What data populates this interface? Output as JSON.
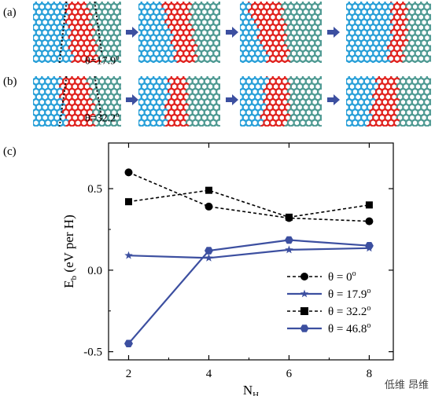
{
  "panels": {
    "a": {
      "label": "(a)",
      "theta": "θ=17.9",
      "theta_sup": "o"
    },
    "b": {
      "label": "(b)",
      "theta": "θ=32.2",
      "theta_sup": "o"
    },
    "c": {
      "label": "(c)"
    }
  },
  "colors": {
    "atom_blue": "#2aa0d8",
    "atom_red": "#e0231f",
    "atom_teal": "#4f9a93",
    "arrow": "#3c4fa0",
    "series_blue": "#3c4fa0"
  },
  "watermark": "低维 昂维",
  "chart_data": {
    "type": "line",
    "xlabel": "N",
    "xlabel_sub": "H",
    "ylabel": "E",
    "ylabel_sub": "b",
    "ylabel_rest": " (eV per H)",
    "xticks": [
      2,
      4,
      6,
      8
    ],
    "yticks": [
      -0.5,
      0.0,
      0.5
    ],
    "ytick_labels": [
      "-0.5",
      "0.0",
      "0.5"
    ],
    "xlim": [
      1.5,
      8.6
    ],
    "ylim": [
      -0.55,
      0.78
    ],
    "series": [
      {
        "name": "θ = 0",
        "name_sup": "o",
        "marker": "circle",
        "style": "dashed",
        "color": "#000000",
        "x": [
          2,
          4,
          6,
          8
        ],
        "y": [
          0.6,
          0.39,
          0.32,
          0.3
        ]
      },
      {
        "name": "θ = 17.9",
        "name_sup": "o",
        "marker": "star",
        "style": "solid",
        "color": "#3c4fa0",
        "x": [
          2,
          4,
          6,
          8
        ],
        "y": [
          0.09,
          0.075,
          0.125,
          0.135
        ]
      },
      {
        "name": "θ = 32.2",
        "name_sup": "o",
        "marker": "square",
        "style": "dashed",
        "color": "#000000",
        "x": [
          2,
          4,
          6,
          8
        ],
        "y": [
          0.42,
          0.49,
          0.325,
          0.4
        ]
      },
      {
        "name": "θ = 46.8",
        "name_sup": "o",
        "marker": "hexagon",
        "style": "solid",
        "color": "#3c4fa0",
        "x": [
          2,
          4,
          6,
          8
        ],
        "y": [
          -0.45,
          0.12,
          0.185,
          0.15
        ]
      }
    ],
    "legend": "bottom-right"
  }
}
